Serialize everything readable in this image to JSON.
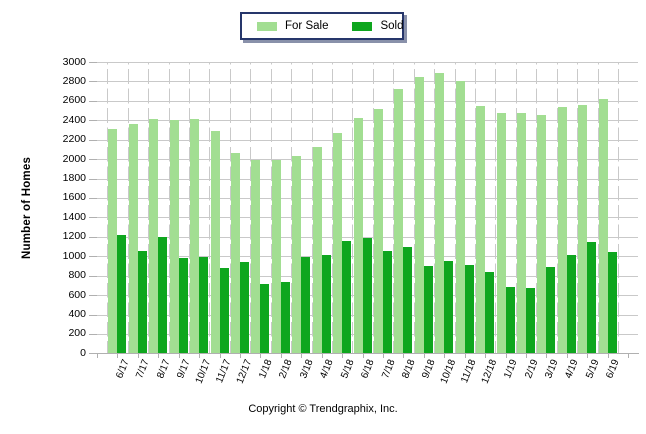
{
  "footer": {
    "copyright": "Copyright © Trendgraphix, Inc."
  },
  "colors": {
    "for_sale": "#A2DE92",
    "sold": "#0EA61E",
    "gridline": "#C9C9C9",
    "axis": "#B0B0B0",
    "legend_border": "#26366B"
  },
  "chart_data": {
    "type": "bar",
    "title": "",
    "categories": [
      "6/17",
      "7/17",
      "8/17",
      "9/17",
      "10/17",
      "11/17",
      "12/17",
      "1/18",
      "2/18",
      "3/18",
      "4/18",
      "5/18",
      "6/18",
      "7/18",
      "8/18",
      "9/18",
      "10/18",
      "11/18",
      "12/18",
      "1/19",
      "2/19",
      "3/19",
      "4/19",
      "5/19",
      "6/19"
    ],
    "series": [
      {
        "name": "For Sale",
        "color": "#A2DE92",
        "values": [
          2310,
          2360,
          2410,
          2400,
          2410,
          2290,
          2060,
          1990,
          1990,
          2030,
          2130,
          2270,
          2420,
          2520,
          2720,
          2850,
          2890,
          2800,
          2550,
          2480,
          2470,
          2450,
          2540,
          2560,
          2620
        ]
      },
      {
        "name": "Sold",
        "color": "#0EA61E",
        "values": [
          1220,
          1050,
          1200,
          980,
          990,
          880,
          940,
          710,
          740,
          990,
          1010,
          1160,
          1190,
          1050,
          1100,
          900,
          950,
          910,
          840,
          680,
          670,
          890,
          1010,
          1150,
          1040
        ]
      }
    ],
    "xlabel": "",
    "ylabel": "Number of Homes",
    "ylim": [
      0,
      3000
    ],
    "ytick_step": 200,
    "grid": true,
    "legend_position": "top-center",
    "x_tick_rotation_deg": -68
  }
}
